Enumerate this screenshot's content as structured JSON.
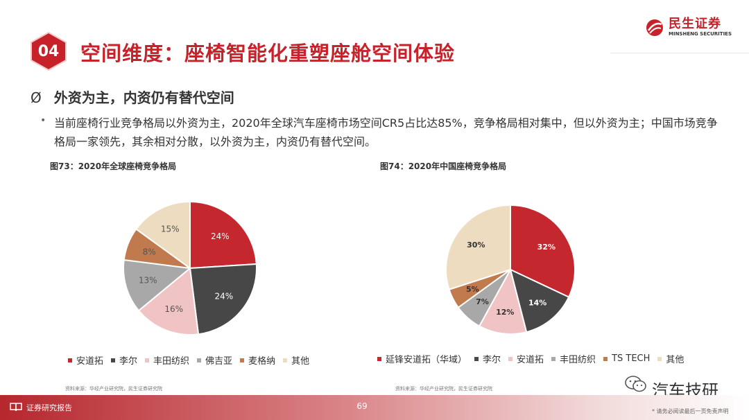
{
  "header": {
    "section_number": "04",
    "title": "空间维度：座椅智能化重塑座舱空间体验",
    "logo_cn": "民生证券",
    "logo_en": "MINSHENG SECURITIES"
  },
  "subtitle": {
    "marker": "Ø",
    "text": "外资为主，内资仍有替代空间"
  },
  "bullet": {
    "text": "当前座椅行业竞争格局以外资为主，2020年全球汽车座椅市场空间CR5占比达85%，竞争格局相对集中，但以外资为主；中国市场竞争格局一家领先，其余相对分散，以外资为主，内资仍有替代空间。"
  },
  "chart_data": [
    {
      "type": "pie",
      "title": "图73：2020年全球座椅竞争格局",
      "categories": [
        "安道拓",
        "李尔",
        "丰田纺织",
        "佛吉亚",
        "麦格纳",
        "其他"
      ],
      "values": [
        24,
        24,
        16,
        13,
        8,
        15
      ],
      "labels": [
        "24%",
        "24%",
        "16%",
        "13%",
        "8%",
        "15%"
      ],
      "colors": [
        "#c4282e",
        "#474747",
        "#f0c4c4",
        "#a8a8a8",
        "#c07a4e",
        "#eddcbf"
      ],
      "label_colors": [
        "#ffffff",
        "#ffffff",
        "#555555",
        "#555555",
        "#555555",
        "#555555"
      ],
      "bold_labels": false,
      "legend": "bottom",
      "source": "资料来源：华经产业研究院，民生证券研究院"
    },
    {
      "type": "pie",
      "title": "图74：2020年中国座椅竞争格局",
      "categories": [
        "延锋安道拓（华域）",
        "李尔",
        "安道拓",
        "丰田纺织",
        "TS TECH",
        "其他"
      ],
      "values": [
        32,
        14,
        12,
        7,
        5,
        30
      ],
      "labels": [
        "32%",
        "14%",
        "12%",
        "7%",
        "5%",
        "30%"
      ],
      "colors": [
        "#c4282e",
        "#474747",
        "#f0c4c4",
        "#a8a8a8",
        "#c07a4e",
        "#eddcbf"
      ],
      "label_colors": [
        "#ffffff",
        "#ffffff",
        "#333333",
        "#333333",
        "#333333",
        "#333333"
      ],
      "bold_labels": true,
      "legend": "bottom",
      "source": "资料来源：华经产业研究院，民生证券研究院"
    }
  ],
  "watermark": "汽车技研",
  "footer": {
    "label": "证券研究报告",
    "page_number": "69",
    "disclaimer": "* 请务必阅读最后一页免责声明"
  }
}
